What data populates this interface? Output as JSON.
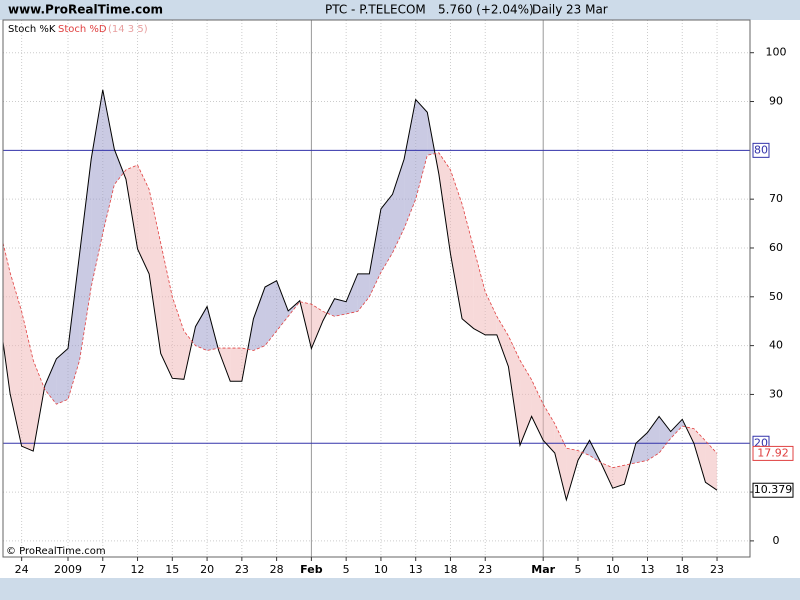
{
  "header": {
    "site": "www.ProRealTime.com",
    "instrument": "PTC - P.TELECOM",
    "quote": "5.760 (+2.04%)",
    "period": "Daily",
    "date": "23 Mar"
  },
  "watermark": "© ProRealTime.com",
  "chart_data": {
    "type": "line",
    "params": "(14 3 5)",
    "categories": [
      null,
      null,
      "24",
      null,
      null,
      null,
      "2009",
      null,
      null,
      "7",
      null,
      null,
      "12",
      null,
      null,
      "15",
      null,
      null,
      "20",
      null,
      null,
      "23",
      null,
      null,
      "28",
      null,
      null,
      "Feb",
      null,
      null,
      "5",
      null,
      null,
      "10",
      null,
      null,
      "13",
      null,
      null,
      "18",
      null,
      null,
      "23",
      null,
      null,
      null,
      null,
      "Mar",
      null,
      null,
      "5",
      null,
      null,
      "10",
      null,
      null,
      "13",
      null,
      null,
      "18",
      null,
      null,
      "23"
    ],
    "series": [
      {
        "name": "Stoch %K",
        "color": "#000000",
        "dashed": false,
        "values": [
          47.6,
          30.2,
          19.4,
          18.4,
          31.8,
          37.3,
          39.4,
          58.8,
          78.2,
          92.4,
          80.2,
          74.1,
          59.8,
          54.7,
          38.4,
          33.3,
          33.1,
          43.9,
          48,
          39,
          32.7,
          32.7,
          45.5,
          52,
          53.3,
          47.1,
          49.2,
          39.4,
          45.1,
          49.6,
          49,
          54.7,
          54.7,
          68,
          71,
          78.2,
          90.4,
          87.8,
          75.1,
          58.8,
          45.5,
          43.5,
          42.2,
          42.2,
          35.7,
          19.6,
          25.5,
          20.6,
          18,
          8.4,
          16.5,
          20.6,
          15.9,
          10.8,
          11.6,
          20,
          22.2,
          25.5,
          22.4,
          24.9,
          20,
          12,
          10.379
        ]
      },
      {
        "name": "Stoch %D",
        "color": "#e04040",
        "dashed": true,
        "values": [
          65,
          55,
          47,
          37,
          31,
          28,
          29,
          37,
          52,
          63,
          73,
          76,
          77,
          72,
          61,
          50,
          43,
          40,
          39,
          39.5,
          39.5,
          39.5,
          39,
          40,
          43,
          46,
          49,
          48.5,
          47,
          46,
          46.5,
          47,
          50,
          55,
          59,
          64,
          70,
          79,
          79.5,
          76,
          69,
          60,
          51,
          46,
          42,
          37,
          33,
          28,
          24,
          19,
          18.5,
          17.5,
          16,
          15,
          15.5,
          16,
          16.5,
          18,
          21,
          23.5,
          23,
          20.5,
          17.92
        ]
      }
    ],
    "ylim": [
      -3.3,
      106.7
    ],
    "yticks": [
      0,
      10,
      30,
      40,
      50,
      60,
      70,
      90,
      100
    ],
    "levels": [
      80,
      20
    ],
    "level_color": "#3333aa",
    "grid": true
  }
}
